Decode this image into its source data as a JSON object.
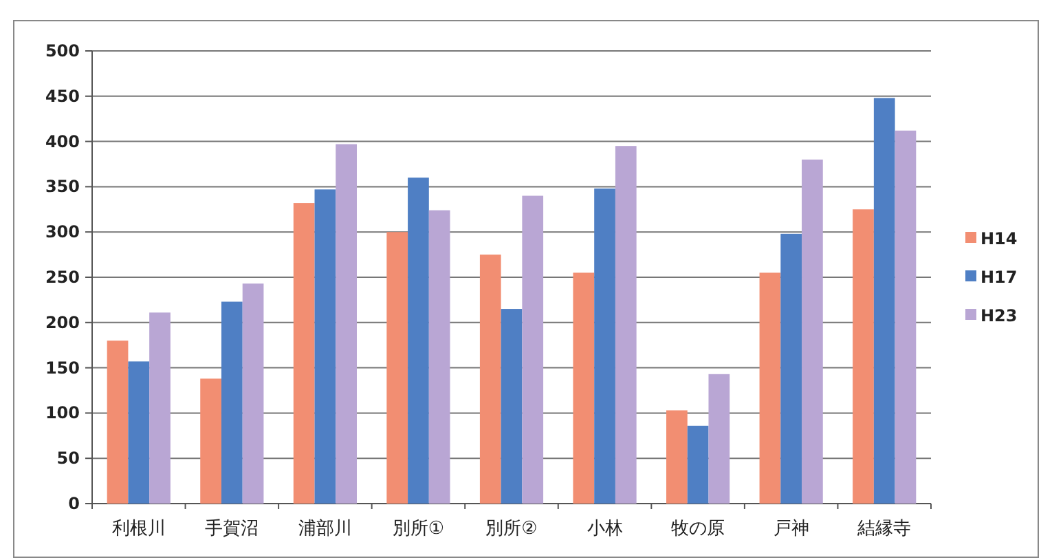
{
  "chart_data": {
    "type": "bar",
    "categories": [
      "利根川",
      "手賀沼",
      "浦部川",
      "別所①",
      "別所②",
      "小林",
      "牧の原",
      "戸神",
      "結縁寺"
    ],
    "series": [
      {
        "name": "H14",
        "color": "#f28e72",
        "values": [
          180,
          138,
          332,
          300,
          275,
          255,
          103,
          255,
          325
        ]
      },
      {
        "name": "H17",
        "color": "#4f7fc4",
        "values": [
          157,
          223,
          347,
          360,
          215,
          348,
          86,
          298,
          448
        ]
      },
      {
        "name": "H23",
        "color": "#b9a6d4",
        "values": [
          211,
          243,
          397,
          324,
          340,
          395,
          143,
          380,
          412
        ]
      }
    ],
    "ylim": [
      0,
      500
    ],
    "yticks": [
      0,
      50,
      100,
      150,
      200,
      250,
      300,
      350,
      400,
      450,
      500
    ],
    "grid": "y",
    "legend": "right"
  }
}
